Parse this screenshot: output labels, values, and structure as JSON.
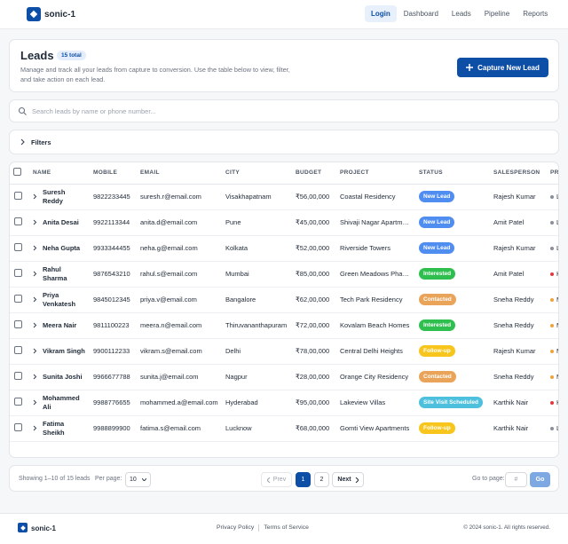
{
  "header": {
    "brand": "sonic-1",
    "nav": [
      "Login",
      "Dashboard",
      "Leads",
      "Pipeline",
      "Reports"
    ],
    "active_nav": 0
  },
  "page_header": {
    "title": "Leads",
    "badge": "15 total",
    "description": "Manage and track all your leads from capture to conversion. Use the table below to view, filter, and take action on each lead.",
    "button": "Capture New Lead"
  },
  "search": {
    "placeholder": "Search leads by name or phone number..."
  },
  "filters": {
    "label": "Filters"
  },
  "table": {
    "columns": [
      "NAME",
      "MOBILE",
      "EMAIL",
      "CITY",
      "BUDGET",
      "PROJECT",
      "STATUS",
      "SALESPERSON",
      "PRIORITY"
    ],
    "rows": [
      [
        "Suresh Reddy",
        "9822233445",
        "suresh.r@email.com",
        "Visakhapatnam",
        "₹56,00,000",
        "Coastal Residency",
        "New Lead",
        "Rajesh Kumar",
        "Low"
      ],
      [
        "Anita Desai",
        "9922113344",
        "anita.d@email.com",
        "Pune",
        "₹45,00,000",
        "Shivaji Nagar Apartments",
        "New Lead",
        "Amit Patel",
        "Low"
      ],
      [
        "Neha Gupta",
        "9933344455",
        "neha.g@email.com",
        "Kolkata",
        "₹52,00,000",
        "Riverside Towers",
        "New Lead",
        "Rajesh Kumar",
        "Low"
      ],
      [
        "Rahul Sharma",
        "9876543210",
        "rahul.s@email.com",
        "Mumbai",
        "₹85,00,000",
        "Green Meadows Phase 2",
        "Interested",
        "Amit Patel",
        "High"
      ],
      [
        "Priya Venkatesh",
        "9845012345",
        "priya.v@email.com",
        "Bangalore",
        "₹62,00,000",
        "Tech Park Residency",
        "Contacted",
        "Sneha Reddy",
        "Medium"
      ],
      [
        "Meera Nair",
        "9811100223",
        "meera.n@email.com",
        "Thiruvananthapuram",
        "₹72,00,000",
        "Kovalam Beach Homes",
        "Interested",
        "Sneha Reddy",
        "Medium"
      ],
      [
        "Vikram Singh",
        "9900112233",
        "vikram.s@email.com",
        "Delhi",
        "₹78,00,000",
        "Central Delhi Heights",
        "Follow-up",
        "Rajesh Kumar",
        "Medium"
      ],
      [
        "Sunita Joshi",
        "9966677788",
        "sunita.j@email.com",
        "Nagpur",
        "₹28,00,000",
        "Orange City Residency",
        "Contacted",
        "Sneha Reddy",
        "Medium"
      ],
      [
        "Mohammed Ali",
        "9988776655",
        "mohammed.a@email.com",
        "Hyderabad",
        "₹95,00,000",
        "Lakeview Villas",
        "Site Visit Scheduled",
        "Karthik Nair",
        "High"
      ],
      [
        "Fatima Sheikh",
        "9988899900",
        "fatima.s@email.com",
        "Lucknow",
        "₹68,00,000",
        "Gomti View Apartments",
        "Follow-up",
        "Karthik Nair",
        "Low"
      ]
    ],
    "status_colors": {
      "New Lead": "#4f8ef0",
      "Interested": "#2fbf4f",
      "Contacted": "#e9a459",
      "Follow-up": "#f7c51c",
      "Site Visit Scheduled": "#4cc0dc"
    },
    "priority_colors": {
      "Low": "#8a8f98",
      "High": "#e0393e",
      "Medium": "#efa23a"
    }
  },
  "pagination": {
    "summary": "Showing 1–10 of 15 leads",
    "per_page_label": "Per page:",
    "per_page": "10",
    "prev": "Prev",
    "pages": [
      "1",
      "2"
    ],
    "current": 0,
    "next": "Next",
    "goto_label": "Go to page:",
    "goto_placeholder": "#",
    "go": "Go"
  },
  "footer": {
    "brand": "sonic-1",
    "links": [
      "Privacy Policy",
      "Terms of Service"
    ],
    "copyright": "© 2024 sonic-1. All rights reserved."
  }
}
